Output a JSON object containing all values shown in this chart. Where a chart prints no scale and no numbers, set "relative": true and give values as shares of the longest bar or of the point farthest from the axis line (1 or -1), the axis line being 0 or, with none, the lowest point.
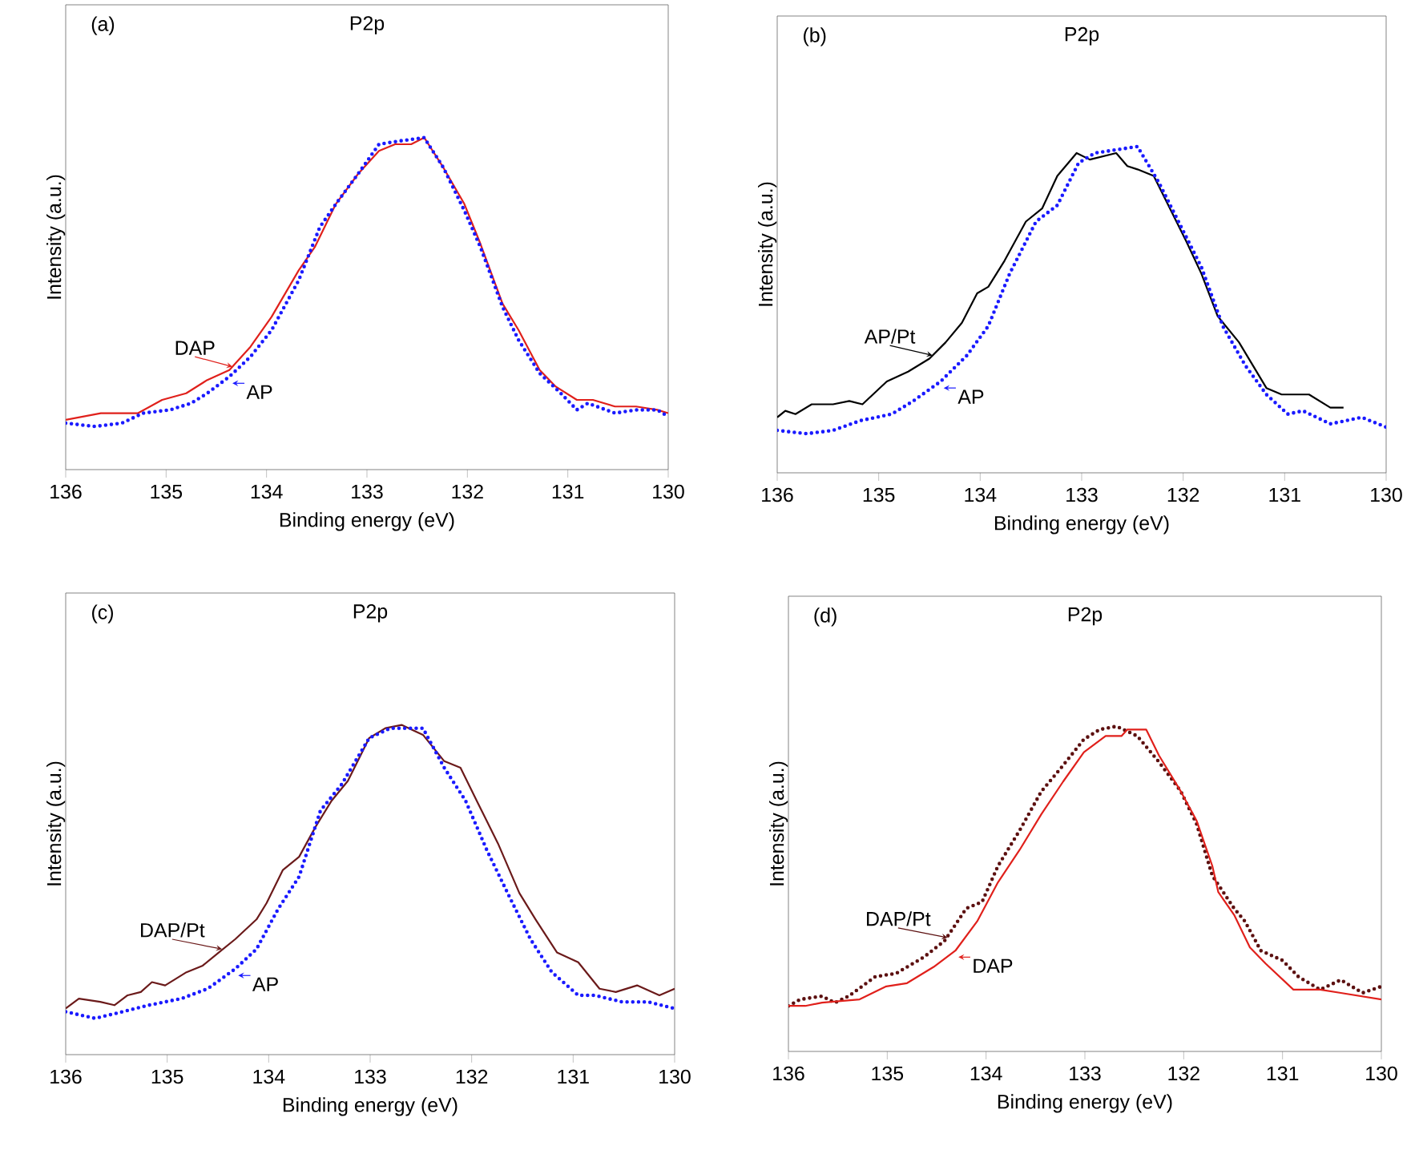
{
  "chart_data": [
    {
      "type": "line",
      "title": "P2p",
      "xlabel": "Binding energy (eV)",
      "ylabel": "Intensity (a.u.)",
      "annotations": [
        "(a)"
      ],
      "relative": true,
      "xlim": [
        136,
        130
      ],
      "xticks": [
        136,
        135,
        134,
        133,
        132,
        131,
        130
      ],
      "series": [
        {
          "name": "DAP",
          "color": "#e0201b",
          "line_style": "solid",
          "x": [
            136.0,
            135.65,
            135.28,
            135.04,
            134.8,
            134.59,
            134.37,
            134.16,
            133.95,
            133.68,
            133.52,
            133.31,
            133.09,
            132.88,
            132.72,
            132.56,
            132.43,
            132.24,
            132.03,
            131.87,
            131.65,
            131.49,
            131.28,
            131.12,
            130.91,
            130.75,
            130.53,
            130.32,
            130.11,
            130.0
          ],
          "values": [
            0.15,
            0.17,
            0.17,
            0.21,
            0.23,
            0.27,
            0.3,
            0.37,
            0.46,
            0.6,
            0.67,
            0.8,
            0.89,
            0.96,
            0.98,
            0.98,
            1.0,
            0.91,
            0.8,
            0.68,
            0.5,
            0.42,
            0.3,
            0.25,
            0.21,
            0.21,
            0.19,
            0.19,
            0.18,
            0.17
          ]
        },
        {
          "name": "AP",
          "color": "#1a1aff",
          "line_style": "dotted",
          "x": [
            136.0,
            135.71,
            135.44,
            135.23,
            134.96,
            134.75,
            134.59,
            134.37,
            134.16,
            133.95,
            133.68,
            133.47,
            133.31,
            133.09,
            132.88,
            132.67,
            132.43,
            132.24,
            132.03,
            131.87,
            131.65,
            131.49,
            131.28,
            131.07,
            130.91,
            130.8,
            130.53,
            130.32,
            130.11,
            130.0
          ],
          "values": [
            0.14,
            0.13,
            0.14,
            0.17,
            0.18,
            0.2,
            0.23,
            0.28,
            0.34,
            0.42,
            0.57,
            0.73,
            0.8,
            0.89,
            0.98,
            0.99,
            1.0,
            0.91,
            0.78,
            0.67,
            0.49,
            0.39,
            0.29,
            0.23,
            0.18,
            0.2,
            0.17,
            0.18,
            0.18,
            0.16
          ]
        }
      ]
    },
    {
      "type": "line",
      "title": "P2p",
      "xlabel": "Binding energy (eV)",
      "ylabel": "Intensity (a.u.)",
      "annotations": [
        "(b)"
      ],
      "relative": true,
      "xlim": [
        136,
        130
      ],
      "xticks": [
        136,
        135,
        134,
        133,
        132,
        131,
        130
      ],
      "series": [
        {
          "name": "AP/Pt",
          "color": "#000000",
          "line_style": "solid",
          "x": [
            136.0,
            135.92,
            135.82,
            135.66,
            135.45,
            135.29,
            135.16,
            134.92,
            134.71,
            134.5,
            134.34,
            134.18,
            134.03,
            133.92,
            133.76,
            133.55,
            133.39,
            133.24,
            133.05,
            132.92,
            132.66,
            132.55,
            132.45,
            132.29,
            132.13,
            131.97,
            131.82,
            131.66,
            131.45,
            131.18,
            131.03,
            130.76,
            130.55,
            130.42
          ],
          "values": [
            0.17,
            0.19,
            0.18,
            0.21,
            0.21,
            0.22,
            0.21,
            0.28,
            0.31,
            0.35,
            0.4,
            0.46,
            0.55,
            0.57,
            0.65,
            0.77,
            0.81,
            0.91,
            0.98,
            0.96,
            0.98,
            0.94,
            0.93,
            0.91,
            0.81,
            0.71,
            0.61,
            0.48,
            0.4,
            0.26,
            0.24,
            0.24,
            0.2,
            0.2
          ]
        },
        {
          "name": "AP",
          "color": "#1a1aff",
          "line_style": "dotted",
          "x": [
            136.0,
            135.71,
            135.45,
            135.18,
            134.87,
            134.66,
            134.39,
            134.13,
            133.92,
            133.71,
            133.45,
            133.24,
            133.03,
            132.87,
            132.66,
            132.45,
            132.24,
            132.03,
            131.82,
            131.61,
            131.39,
            131.18,
            130.97,
            130.82,
            130.55,
            130.24,
            130.0
          ],
          "values": [
            0.13,
            0.12,
            0.13,
            0.16,
            0.18,
            0.22,
            0.28,
            0.36,
            0.45,
            0.61,
            0.77,
            0.82,
            0.95,
            0.98,
            0.99,
            1.0,
            0.89,
            0.76,
            0.63,
            0.45,
            0.33,
            0.24,
            0.18,
            0.19,
            0.15,
            0.17,
            0.14
          ]
        }
      ]
    },
    {
      "type": "line",
      "title": "P2p",
      "xlabel": "Binding energy (eV)",
      "ylabel": "Intensity (a.u.)",
      "annotations": [
        "(c)"
      ],
      "relative": true,
      "xlim": [
        136,
        130
      ],
      "xticks": [
        136,
        135,
        134,
        133,
        132,
        131,
        130
      ],
      "series": [
        {
          "name": "DAP/Pt",
          "color": "#6b1a1a",
          "line_style": "solid",
          "x": [
            136.0,
            135.87,
            135.66,
            135.52,
            135.39,
            135.26,
            135.15,
            135.02,
            134.81,
            134.65,
            134.49,
            134.33,
            134.12,
            134.02,
            133.86,
            133.7,
            133.54,
            133.38,
            133.22,
            133.01,
            132.85,
            132.69,
            132.48,
            132.27,
            132.11,
            131.95,
            131.74,
            131.53,
            131.37,
            131.16,
            130.95,
            130.74,
            130.58,
            130.37,
            130.15,
            130.0
          ],
          "values": [
            0.14,
            0.17,
            0.16,
            0.15,
            0.18,
            0.19,
            0.22,
            0.21,
            0.25,
            0.27,
            0.31,
            0.35,
            0.41,
            0.46,
            0.56,
            0.6,
            0.69,
            0.77,
            0.83,
            0.96,
            0.99,
            1.0,
            0.97,
            0.89,
            0.87,
            0.77,
            0.64,
            0.49,
            0.41,
            0.31,
            0.28,
            0.2,
            0.19,
            0.21,
            0.18,
            0.2
          ]
        },
        {
          "name": "AP",
          "color": "#1a1aff",
          "line_style": "dotted",
          "x": [
            136.0,
            135.71,
            135.44,
            135.18,
            134.86,
            134.6,
            134.33,
            134.12,
            133.91,
            133.7,
            133.49,
            133.28,
            133.01,
            132.8,
            132.48,
            132.27,
            132.06,
            131.85,
            131.63,
            131.42,
            131.21,
            130.95,
            130.79,
            130.52,
            130.26,
            130.0
          ],
          "values": [
            0.13,
            0.11,
            0.13,
            0.15,
            0.17,
            0.2,
            0.26,
            0.32,
            0.44,
            0.54,
            0.74,
            0.82,
            0.96,
            0.99,
            0.99,
            0.87,
            0.77,
            0.62,
            0.48,
            0.35,
            0.25,
            0.18,
            0.18,
            0.16,
            0.16,
            0.14
          ]
        }
      ]
    },
    {
      "type": "line",
      "title": "P2p",
      "xlabel": "Binding energy (eV)",
      "ylabel": "Intensity (a.u.)",
      "annotations": [
        "(d)"
      ],
      "relative": true,
      "xlim": [
        136,
        130
      ],
      "xticks": [
        136,
        135,
        134,
        133,
        132,
        131,
        130
      ],
      "series": [
        {
          "name": "DAP/Pt",
          "color": "#5c1010",
          "line_style": "dotted",
          "x": [
            136.0,
            135.88,
            135.66,
            135.53,
            135.39,
            135.12,
            134.91,
            134.63,
            134.42,
            134.2,
            134.04,
            133.88,
            133.66,
            133.44,
            133.22,
            133.01,
            132.85,
            132.68,
            132.47,
            132.25,
            132.03,
            131.87,
            131.71,
            131.49,
            131.38,
            131.22,
            131.0,
            130.84,
            130.62,
            130.41,
            130.19,
            130.0
          ],
          "values": [
            0.14,
            0.16,
            0.17,
            0.15,
            0.17,
            0.23,
            0.24,
            0.29,
            0.34,
            0.44,
            0.46,
            0.57,
            0.68,
            0.8,
            0.88,
            0.96,
            0.99,
            1.0,
            0.97,
            0.89,
            0.8,
            0.7,
            0.54,
            0.44,
            0.4,
            0.31,
            0.28,
            0.23,
            0.19,
            0.22,
            0.18,
            0.2
          ]
        },
        {
          "name": "DAP",
          "color": "#e0201b",
          "line_style": "solid",
          "x": [
            136.0,
            135.83,
            135.66,
            135.28,
            135.01,
            134.8,
            134.53,
            134.31,
            134.09,
            133.88,
            133.66,
            133.44,
            133.22,
            133.01,
            132.79,
            132.63,
            132.57,
            132.38,
            132.25,
            132.03,
            131.87,
            131.71,
            131.65,
            131.49,
            131.33,
            131.17,
            130.89,
            130.62,
            130.41,
            130.0
          ],
          "values": [
            0.14,
            0.14,
            0.15,
            0.16,
            0.2,
            0.21,
            0.26,
            0.31,
            0.4,
            0.52,
            0.62,
            0.73,
            0.83,
            0.92,
            0.97,
            0.97,
            0.99,
            0.99,
            0.91,
            0.8,
            0.71,
            0.57,
            0.49,
            0.42,
            0.32,
            0.27,
            0.19,
            0.19,
            0.18,
            0.16
          ]
        }
      ]
    }
  ]
}
